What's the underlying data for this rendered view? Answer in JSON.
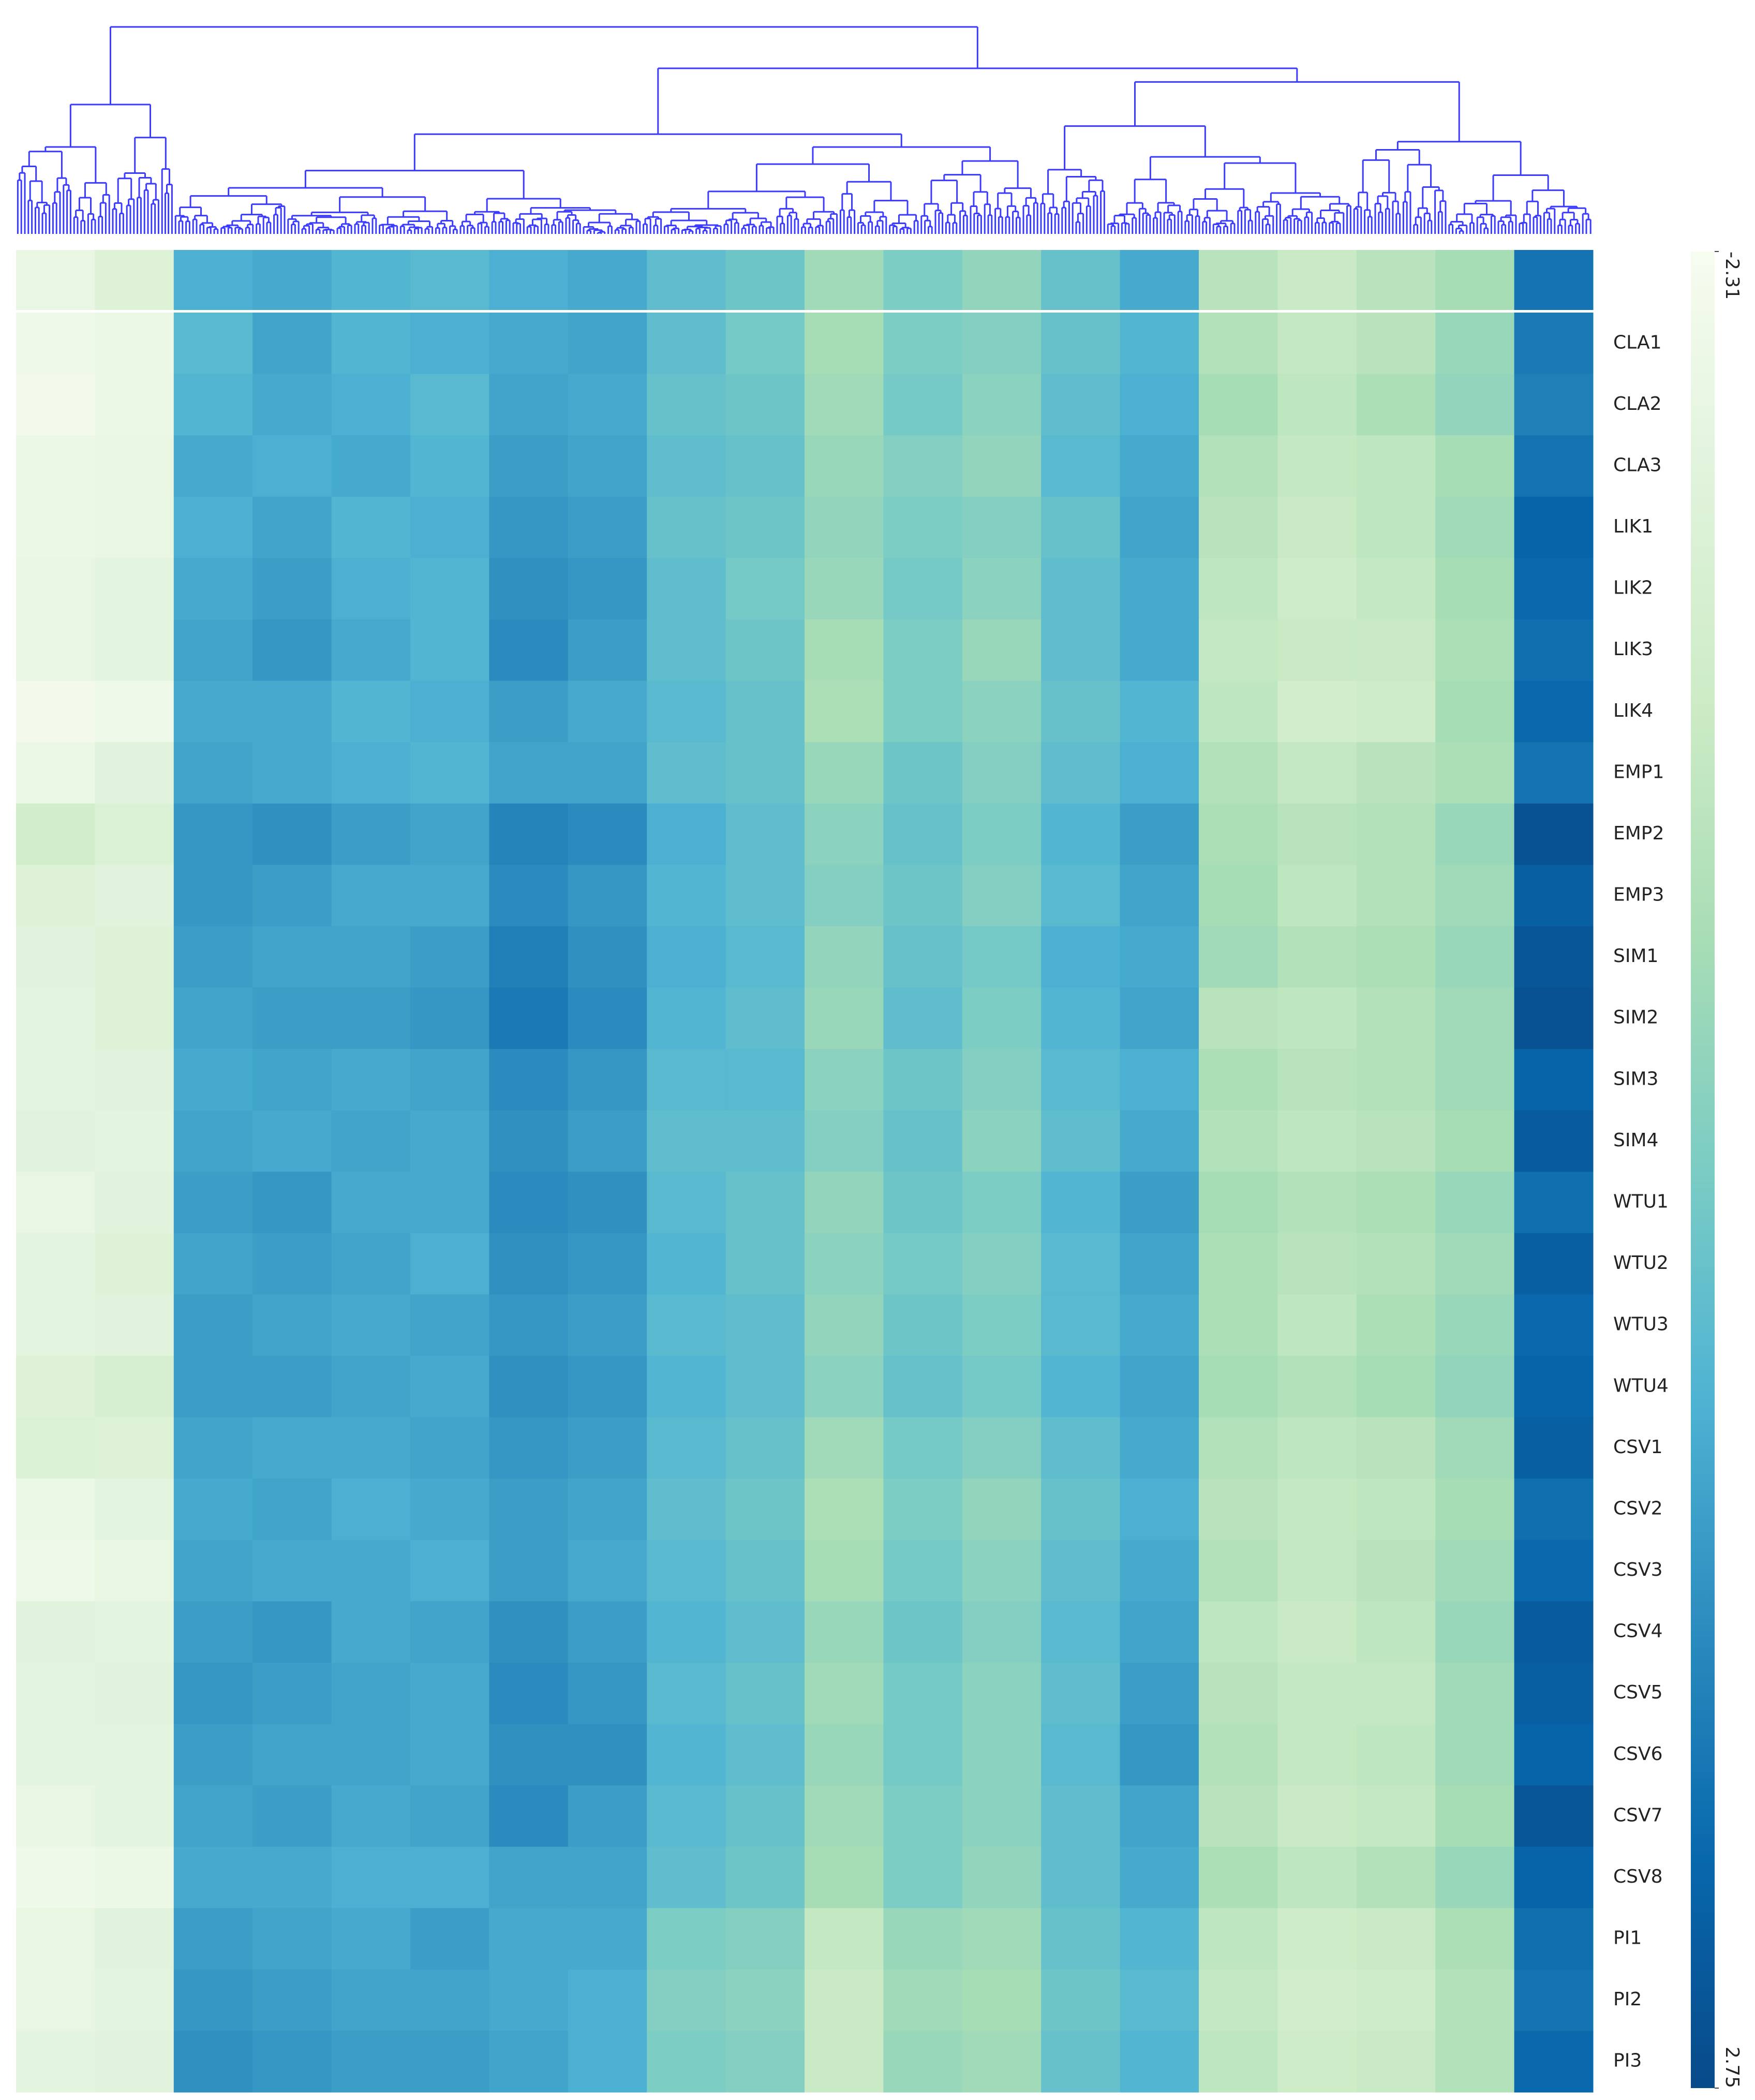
{
  "chart_data": {
    "type": "heatmap",
    "rows": [
      "CLA1",
      "CLA2",
      "CLA3",
      "LIK1",
      "LIK2",
      "LIK3",
      "LIK4",
      "EMP1",
      "EMP2",
      "EMP3",
      "SIM1",
      "SIM2",
      "SIM3",
      "SIM4",
      "WTU1",
      "WTU2",
      "WTU3",
      "WTU4",
      "CSV1",
      "CSV2",
      "CSV3",
      "CSV4",
      "CSV5",
      "CSV6",
      "CSV7",
      "CSV8",
      "PI1",
      "PI2",
      "PI3"
    ],
    "summary_values": [
      -1.9,
      -1.6,
      0.9,
      1.0,
      0.8,
      0.7,
      0.9,
      1.0,
      0.6,
      0.4,
      -0.3,
      0.2,
      -0.1,
      0.5,
      1.0,
      -0.7,
      -1.0,
      -0.7,
      -0.4,
      1.9
    ],
    "values": [
      [
        -2.1,
        -2.0,
        0.7,
        1.1,
        0.8,
        0.9,
        1.0,
        1.1,
        0.6,
        0.3,
        -0.4,
        0.2,
        0.1,
        0.5,
        0.8,
        -0.6,
        -0.9,
        -0.7,
        -0.2,
        1.8
      ],
      [
        -2.2,
        -2.0,
        0.8,
        1.0,
        0.9,
        0.7,
        1.1,
        1.0,
        0.5,
        0.4,
        -0.3,
        0.3,
        0.0,
        0.6,
        0.9,
        -0.4,
        -0.8,
        -0.5,
        -0.1,
        1.7
      ],
      [
        -2.0,
        -1.9,
        1.0,
        0.9,
        1.0,
        0.8,
        1.2,
        1.1,
        0.6,
        0.5,
        -0.2,
        0.1,
        -0.1,
        0.7,
        1.0,
        -0.6,
        -0.9,
        -0.8,
        -0.4,
        1.9
      ],
      [
        -2.0,
        -1.9,
        0.9,
        1.1,
        0.8,
        0.9,
        1.3,
        1.2,
        0.5,
        0.4,
        -0.1,
        0.2,
        0.1,
        0.5,
        1.1,
        -0.7,
        -1.0,
        -0.8,
        -0.3,
        2.2
      ],
      [
        -1.9,
        -1.8,
        1.0,
        1.2,
        0.9,
        0.8,
        1.4,
        1.3,
        0.6,
        0.3,
        -0.2,
        0.3,
        0.0,
        0.6,
        1.0,
        -0.8,
        -1.1,
        -0.9,
        -0.4,
        2.1
      ],
      [
        -1.9,
        -1.8,
        1.1,
        1.3,
        1.0,
        0.8,
        1.5,
        1.2,
        0.6,
        0.4,
        -0.4,
        0.2,
        -0.2,
        0.6,
        1.0,
        -0.9,
        -1.0,
        -1.0,
        -0.5,
        2.0
      ],
      [
        -2.2,
        -2.1,
        1.0,
        1.0,
        0.8,
        0.9,
        1.2,
        1.0,
        0.7,
        0.5,
        -0.5,
        0.2,
        0.0,
        0.5,
        0.8,
        -0.8,
        -1.2,
        -1.1,
        -0.4,
        2.1
      ],
      [
        -2.0,
        -1.7,
        1.1,
        1.0,
        0.9,
        0.8,
        1.1,
        1.1,
        0.6,
        0.5,
        -0.2,
        0.4,
        0.1,
        0.6,
        0.9,
        -0.6,
        -0.9,
        -0.7,
        -0.5,
        1.9
      ],
      [
        -1.2,
        -1.5,
        1.3,
        1.4,
        1.2,
        1.1,
        1.6,
        1.5,
        0.9,
        0.6,
        0.0,
        0.5,
        0.2,
        0.8,
        1.2,
        -0.5,
        -0.7,
        -0.6,
        -0.2,
        2.6
      ],
      [
        -1.6,
        -1.7,
        1.3,
        1.2,
        1.0,
        1.0,
        1.5,
        1.3,
        0.8,
        0.6,
        0.1,
        0.4,
        0.1,
        0.7,
        1.1,
        -0.4,
        -0.8,
        -0.6,
        -0.3,
        2.3
      ],
      [
        -1.7,
        -1.6,
        1.2,
        1.1,
        1.1,
        1.2,
        1.7,
        1.4,
        0.9,
        0.7,
        -0.1,
        0.5,
        0.3,
        0.9,
        1.0,
        -0.3,
        -0.6,
        -0.5,
        -0.2,
        2.5
      ],
      [
        -1.8,
        -1.6,
        1.1,
        1.2,
        1.2,
        1.3,
        1.8,
        1.5,
        0.8,
        0.6,
        -0.2,
        0.6,
        0.2,
        0.8,
        1.1,
        -0.7,
        -0.8,
        -0.6,
        -0.3,
        2.6
      ],
      [
        -1.8,
        -1.7,
        1.0,
        1.1,
        1.0,
        1.1,
        1.5,
        1.3,
        0.7,
        0.7,
        0.0,
        0.4,
        0.1,
        0.7,
        0.9,
        -0.5,
        -0.7,
        -0.6,
        -0.3,
        2.2
      ],
      [
        -1.7,
        -1.8,
        1.1,
        1.0,
        1.1,
        1.0,
        1.4,
        1.2,
        0.6,
        0.6,
        0.1,
        0.5,
        0.0,
        0.6,
        1.0,
        -0.6,
        -0.8,
        -0.7,
        -0.4,
        2.4
      ],
      [
        -1.9,
        -1.7,
        1.2,
        1.3,
        1.0,
        1.0,
        1.5,
        1.4,
        0.7,
        0.5,
        -0.1,
        0.4,
        0.2,
        0.8,
        1.2,
        -0.4,
        -0.6,
        -0.5,
        -0.2,
        2.0
      ],
      [
        -1.8,
        -1.6,
        1.1,
        1.2,
        1.1,
        0.9,
        1.4,
        1.3,
        0.8,
        0.5,
        0.0,
        0.3,
        0.1,
        0.7,
        1.1,
        -0.5,
        -0.7,
        -0.6,
        -0.3,
        2.3
      ],
      [
        -1.8,
        -1.7,
        1.2,
        1.1,
        1.0,
        1.1,
        1.3,
        1.2,
        0.7,
        0.6,
        -0.1,
        0.4,
        0.2,
        0.7,
        1.0,
        -0.5,
        -0.8,
        -0.5,
        -0.2,
        2.1
      ],
      [
        -1.6,
        -1.4,
        1.2,
        1.2,
        1.1,
        1.0,
        1.4,
        1.3,
        0.8,
        0.6,
        0.0,
        0.5,
        0.3,
        0.8,
        1.1,
        -0.4,
        -0.6,
        -0.4,
        -0.1,
        2.2
      ],
      [
        -1.5,
        -1.6,
        1.1,
        1.0,
        1.0,
        1.1,
        1.3,
        1.2,
        0.7,
        0.5,
        -0.3,
        0.3,
        0.1,
        0.6,
        1.0,
        -0.6,
        -0.8,
        -0.7,
        -0.3,
        2.3
      ],
      [
        -2.0,
        -1.8,
        1.0,
        1.1,
        0.9,
        1.0,
        1.2,
        1.1,
        0.6,
        0.4,
        -0.5,
        0.2,
        -0.1,
        0.5,
        0.9,
        -0.7,
        -0.9,
        -0.8,
        -0.4,
        2.0
      ],
      [
        -2.1,
        -1.9,
        1.1,
        1.0,
        1.0,
        0.9,
        1.2,
        1.0,
        0.7,
        0.5,
        -0.4,
        0.3,
        0.0,
        0.6,
        1.0,
        -0.6,
        -0.9,
        -0.7,
        -0.3,
        2.1
      ],
      [
        -1.7,
        -1.8,
        1.2,
        1.3,
        1.0,
        1.1,
        1.4,
        1.2,
        0.8,
        0.6,
        -0.2,
        0.4,
        0.1,
        0.7,
        1.1,
        -0.8,
        -1.0,
        -0.8,
        -0.2,
        2.4
      ],
      [
        -1.8,
        -1.7,
        1.3,
        1.2,
        1.1,
        1.0,
        1.5,
        1.3,
        0.7,
        0.5,
        -0.3,
        0.3,
        0.0,
        0.6,
        1.2,
        -0.7,
        -0.9,
        -0.9,
        -0.3,
        2.3
      ],
      [
        -1.8,
        -1.8,
        1.2,
        1.1,
        1.1,
        1.0,
        1.4,
        1.4,
        0.8,
        0.6,
        -0.2,
        0.3,
        0.0,
        0.7,
        1.3,
        -0.6,
        -0.9,
        -0.8,
        -0.3,
        2.2
      ],
      [
        -1.9,
        -1.8,
        1.1,
        1.2,
        1.0,
        1.1,
        1.5,
        1.2,
        0.7,
        0.5,
        -0.3,
        0.2,
        0.0,
        0.6,
        1.1,
        -0.7,
        -1.0,
        -0.9,
        -0.4,
        2.5
      ],
      [
        -2.1,
        -2.0,
        1.0,
        1.0,
        0.9,
        0.9,
        1.1,
        1.1,
        0.6,
        0.4,
        -0.4,
        0.2,
        -0.1,
        0.6,
        1.0,
        -0.5,
        -0.8,
        -0.6,
        -0.2,
        2.2
      ],
      [
        -1.9,
        -1.7,
        1.2,
        1.1,
        1.0,
        1.2,
        1.0,
        1.0,
        0.2,
        0.1,
        -0.9,
        -0.2,
        -0.3,
        0.5,
        0.8,
        -0.8,
        -1.1,
        -1.0,
        -0.5,
        2.0
      ],
      [
        -1.9,
        -1.8,
        1.3,
        1.2,
        1.1,
        1.1,
        1.0,
        0.9,
        0.1,
        0.0,
        -1.0,
        -0.3,
        -0.4,
        0.4,
        0.7,
        -0.9,
        -1.2,
        -1.1,
        -0.6,
        1.9
      ],
      [
        -1.8,
        -1.7,
        1.4,
        1.3,
        1.2,
        1.2,
        1.1,
        0.9,
        0.2,
        0.1,
        -1.0,
        -0.2,
        -0.3,
        0.5,
        0.8,
        -0.8,
        -1.1,
        -1.0,
        -0.6,
        2.1
      ]
    ],
    "clim": [
      -2.31,
      2.75
    ],
    "cticks": [
      -2.31,
      2.75
    ],
    "colormap": [
      "#f7fcf0",
      "#e0f3db",
      "#ccebc5",
      "#a8ddb5",
      "#7bccc4",
      "#4eb3d3",
      "#2b8cbe",
      "#0868ac",
      "#084a8a"
    ],
    "dendrogram_color": "#3b3bff"
  }
}
